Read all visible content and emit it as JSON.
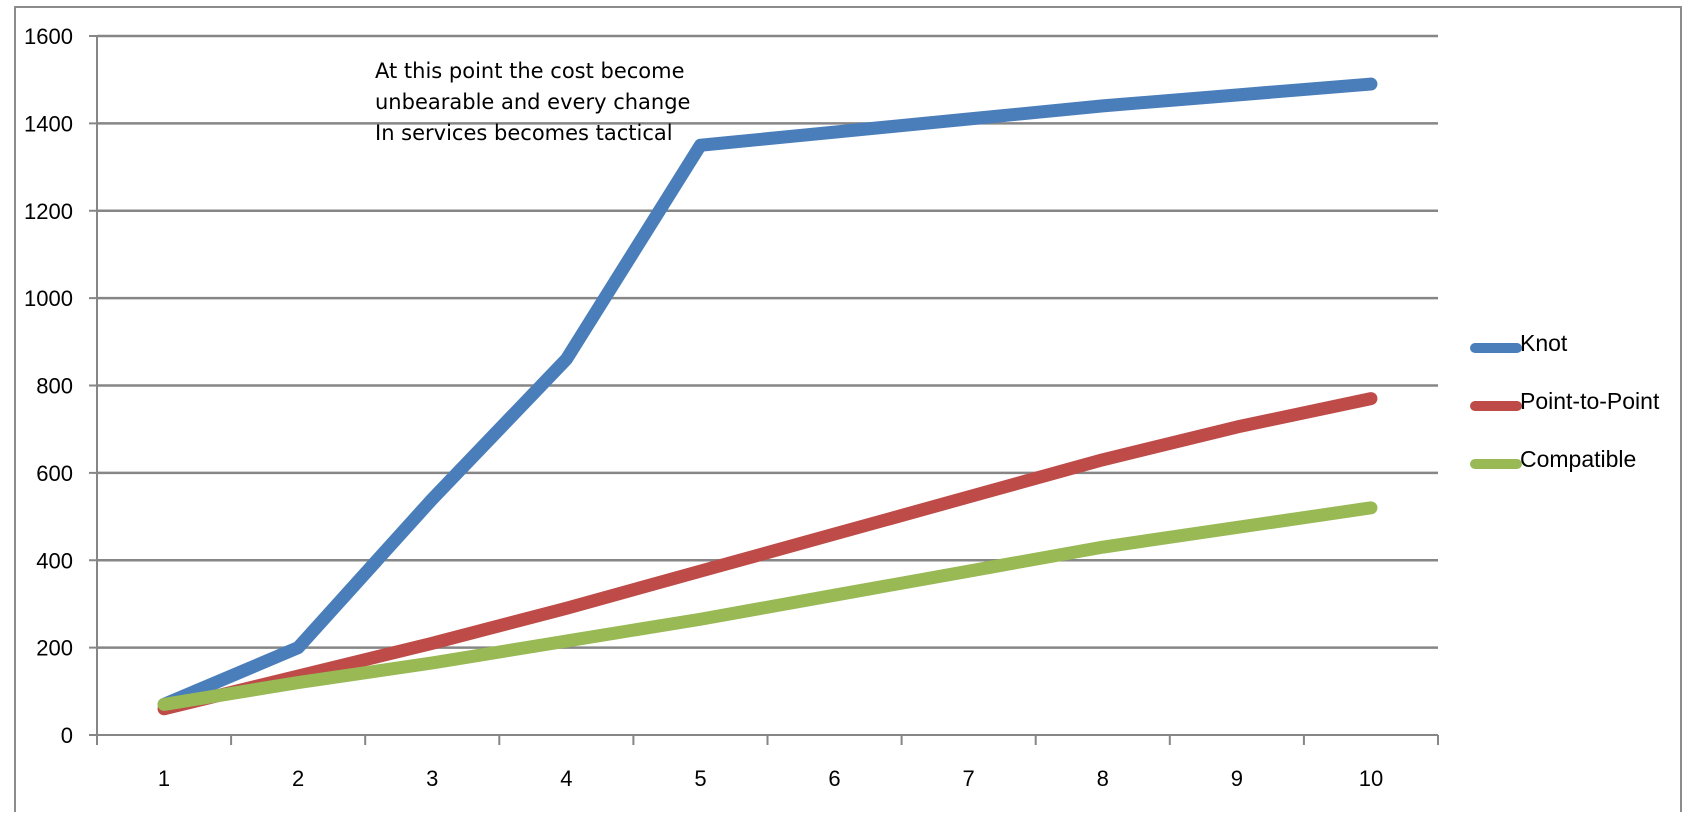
{
  "chart_data": {
    "type": "line",
    "x": [
      1,
      2,
      3,
      4,
      5,
      6,
      7,
      8,
      9,
      10
    ],
    "yticks": [
      0,
      200,
      400,
      600,
      800,
      1000,
      1200,
      1400,
      1600
    ],
    "ylim": [
      0,
      1600
    ],
    "grid": true,
    "legend_position": "right",
    "annotation": [
      "At this point the cost become",
      "unbearable and every change",
      "In services becomes tactical"
    ],
    "series": [
      {
        "name": "Knot",
        "color": "#4a7ebb",
        "values": [
          70,
          200,
          540,
          860,
          1350,
          1380,
          1410,
          1440,
          1465,
          1490
        ]
      },
      {
        "name": "Point-to-Point",
        "color": "#be4b48",
        "values": [
          60,
          135,
          210,
          290,
          375,
          460,
          545,
          630,
          705,
          770
        ]
      },
      {
        "name": "Compatible",
        "color": "#98b954",
        "values": [
          70,
          120,
          165,
          215,
          265,
          320,
          375,
          430,
          475,
          520
        ]
      }
    ]
  }
}
